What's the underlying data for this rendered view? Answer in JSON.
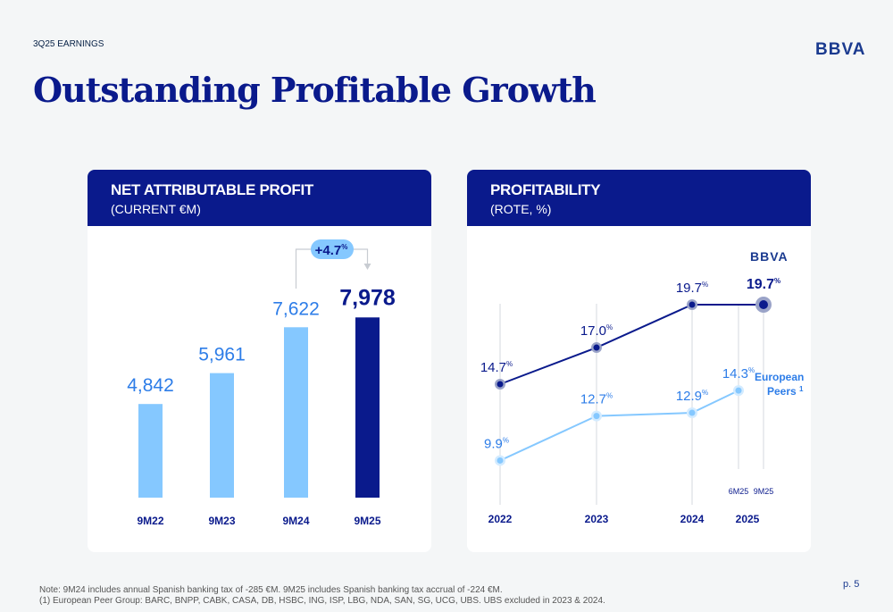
{
  "header": {
    "kicker": "3Q25 EARNINGS",
    "logo": "BBVA",
    "title": "Outstanding Profitable Growth"
  },
  "colors": {
    "navy": "#0a1a8c",
    "light_blue": "#85c8ff",
    "mid_blue": "#2d7de8",
    "badge": "#85c8ff"
  },
  "chart_data": [
    {
      "type": "bar",
      "title": "NET ATTRIBUTABLE PROFIT",
      "subtitle": "(CURRENT €M)",
      "categories": [
        "9M22",
        "9M23",
        "9M24",
        "9M25"
      ],
      "values": [
        4842,
        5961,
        7622,
        7978
      ],
      "labels": [
        "4,842",
        "5,961",
        "7,622",
        "7,978"
      ],
      "highlight": "9M25",
      "annotation": {
        "text": "+4.7",
        "unit": "%",
        "from": "9M24",
        "to": "9M25"
      }
    },
    {
      "type": "line",
      "title": "PROFITABILITY",
      "subtitle": "(ROTE, %)",
      "x_labels": [
        "2022",
        "2023",
        "2024",
        "2025"
      ],
      "sub_labels": [
        "6M25",
        "9M25"
      ],
      "series": [
        {
          "name": "BBVA",
          "x": [
            "2022",
            "2023",
            "2024",
            "9M25"
          ],
          "values": [
            14.7,
            17.0,
            19.7,
            19.7
          ],
          "labels": [
            "14.7",
            "17.0",
            "19.7",
            "19.7"
          ]
        },
        {
          "name": "European Peers",
          "footnote": "1",
          "x": [
            "2022",
            "2023",
            "2024",
            "6M25"
          ],
          "values": [
            9.9,
            12.7,
            12.9,
            14.3
          ],
          "labels": [
            "9.9",
            "12.7",
            "12.9",
            "14.3"
          ]
        }
      ],
      "unit": "%"
    }
  ],
  "footer": {
    "note": "Note: 9M24 includes annual Spanish banking tax of -285 €M. 9M25 includes Spanish banking tax accrual of -224 €M.",
    "footnote": "(1) European Peer Group: BARC, BNPP, CABK, CASA, DB, HSBC, ING, ISP, LBG, NDA, SAN, SG, UCG, UBS. UBS excluded in 2023 & 2024.",
    "page": "p. 5"
  }
}
